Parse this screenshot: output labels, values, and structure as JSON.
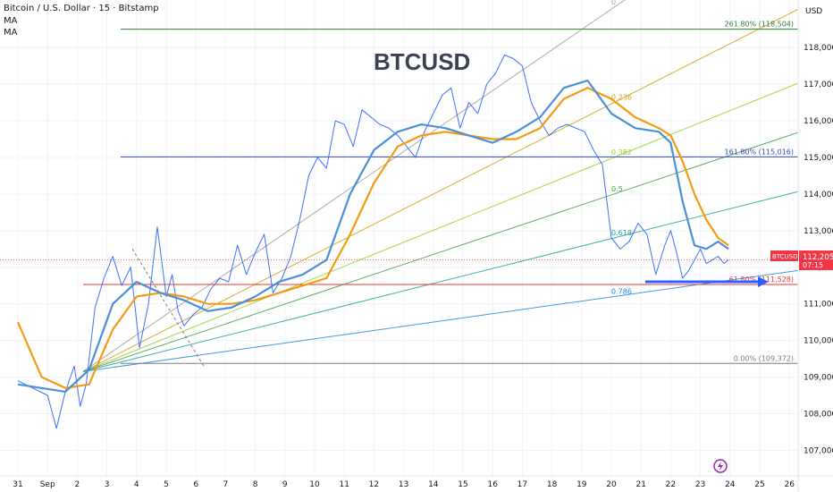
{
  "header": {
    "symbol_line": "Bitcoin / U.S. Dollar · 15 · Bitstamp",
    "indicators": [
      "MA",
      "MA"
    ],
    "currency": "USD"
  },
  "chart_data": {
    "type": "line",
    "title": "BTCUSD",
    "x_ticks": [
      "31",
      "Sep",
      "2",
      "3",
      "4",
      "5",
      "6",
      "7",
      "8",
      "9",
      "10",
      "11",
      "12",
      "13",
      "14",
      "15",
      "16",
      "17",
      "18",
      "19",
      "20",
      "21",
      "22",
      "23",
      "24",
      "25",
      "26"
    ],
    "y_ticks": [
      107000,
      108000,
      109000,
      110000,
      111000,
      112000,
      113000,
      114000,
      115000,
      116000,
      117000,
      118000
    ],
    "ylim": [
      106300,
      119300
    ],
    "series": [
      {
        "name": "",
        "kind": "price",
        "color": "#2962ff",
        "x": [
          0,
          0.5,
          1,
          1.3,
          1.6,
          1.9,
          2.1,
          2.3,
          2.6,
          2.9,
          3.2,
          3.5,
          3.8,
          4.1,
          4.4,
          4.7,
          5.0,
          5.2,
          5.4,
          5.6,
          5.9,
          6.2,
          6.5,
          6.8,
          7.1,
          7.4,
          7.7,
          8.0,
          8.3,
          8.6,
          8.9,
          9.2,
          9.5,
          9.8,
          10.1,
          10.4,
          10.7,
          11.0,
          11.3,
          11.6,
          11.9,
          12.2,
          12.5,
          12.8,
          13.1,
          13.4,
          13.7,
          14.0,
          14.3,
          14.6,
          14.9,
          15.2,
          15.5,
          15.8,
          16.1,
          16.4,
          16.7,
          17.0,
          17.3,
          17.6,
          17.9,
          18.2,
          18.5,
          18.8,
          19.1,
          19.4,
          19.7,
          20.0,
          20.3,
          20.6,
          20.9,
          21.2,
          21.5,
          21.8,
          22.0,
          22.2,
          22.4,
          22.6,
          22.8,
          23.0,
          23.2,
          23.4,
          23.6,
          23.8,
          23.95
        ],
        "y": [
          108900,
          108700,
          108500,
          107600,
          108600,
          109300,
          108200,
          108800,
          110900,
          111700,
          112300,
          111500,
          112000,
          109800,
          111000,
          113100,
          111200,
          111800,
          110800,
          110400,
          110700,
          110900,
          111400,
          111700,
          111600,
          112600,
          111800,
          112400,
          112900,
          111300,
          111700,
          112300,
          113300,
          114500,
          115000,
          114700,
          116000,
          115900,
          115300,
          116300,
          116100,
          115900,
          115800,
          115600,
          115300,
          115000,
          115700,
          116200,
          116700,
          116900,
          115800,
          116500,
          116200,
          117000,
          117300,
          117800,
          117700,
          117500,
          116500,
          116000,
          115600,
          115800,
          115900,
          115800,
          115700,
          115200,
          114800,
          112800,
          112500,
          112700,
          113200,
          112900,
          111800,
          112600,
          113000,
          112400,
          111700,
          111900,
          112200,
          112500,
          112100,
          112200,
          112300,
          112100,
          112205
        ]
      },
      {
        "name": "",
        "kind": "ma_fast",
        "color": "#4a90d9",
        "x": [
          0,
          0.8,
          1.6,
          2.4,
          3.2,
          4.0,
          4.8,
          5.6,
          6.4,
          7.2,
          8.0,
          8.8,
          9.6,
          10.4,
          11.2,
          12.0,
          12.8,
          13.6,
          14.4,
          15.2,
          16.0,
          16.8,
          17.6,
          18.4,
          19.2,
          20.0,
          20.8,
          21.6,
          22.0,
          22.4,
          22.8,
          23.2,
          23.6,
          23.95
        ],
        "y": [
          108800,
          108700,
          108600,
          109200,
          111000,
          111600,
          111300,
          111100,
          110800,
          110900,
          111200,
          111600,
          111800,
          112200,
          114000,
          115200,
          115700,
          115900,
          115800,
          115600,
          115400,
          115700,
          116100,
          116900,
          117100,
          116200,
          115800,
          115700,
          115400,
          113800,
          112600,
          112500,
          112700,
          112500
        ]
      },
      {
        "name": "",
        "kind": "ma_slow",
        "color": "#f39c12",
        "x": [
          0,
          0.8,
          1.6,
          2.4,
          3.2,
          4.0,
          4.8,
          5.6,
          6.4,
          7.2,
          8.0,
          8.8,
          9.6,
          10.4,
          11.2,
          12.0,
          12.8,
          13.6,
          14.4,
          15.2,
          16.0,
          16.8,
          17.6,
          18.4,
          19.2,
          20.0,
          20.8,
          21.6,
          22.0,
          22.4,
          22.8,
          23.2,
          23.6,
          23.95
        ],
        "y": [
          110500,
          109000,
          108700,
          108800,
          110300,
          111200,
          111300,
          111200,
          111000,
          111000,
          111100,
          111300,
          111500,
          111700,
          112900,
          114300,
          115300,
          115600,
          115700,
          115600,
          115500,
          115500,
          115800,
          116600,
          116900,
          116600,
          116100,
          115800,
          115600,
          114900,
          114000,
          113300,
          112800,
          112600
        ]
      }
    ],
    "fib_extension_levels": [
      {
        "label": "261.80% (118,504)",
        "value": 118504,
        "color": "#2e7d32"
      },
      {
        "label": "161.80% (115,016)",
        "value": 115016,
        "color": "#3949ab"
      },
      {
        "label": "61.80% (111,528)",
        "value": 111528,
        "color": "#e53935"
      },
      {
        "label": "0.00% (109,372)",
        "value": 109372,
        "color": "#787b86"
      }
    ],
    "fan_labels": [
      {
        "label": "0",
        "value": 119100
      },
      {
        "label": "0.236",
        "value": 116500
      },
      {
        "label": "0.382",
        "value": 115000
      },
      {
        "label": "0.5",
        "value": 114000
      },
      {
        "label": "0.618",
        "value": 112800
      },
      {
        "label": "0.786",
        "value": 111200
      }
    ],
    "current_price": {
      "symbol": "BTCUSD",
      "price": "112,205",
      "countdown": "07:15",
      "value": 112205
    }
  }
}
